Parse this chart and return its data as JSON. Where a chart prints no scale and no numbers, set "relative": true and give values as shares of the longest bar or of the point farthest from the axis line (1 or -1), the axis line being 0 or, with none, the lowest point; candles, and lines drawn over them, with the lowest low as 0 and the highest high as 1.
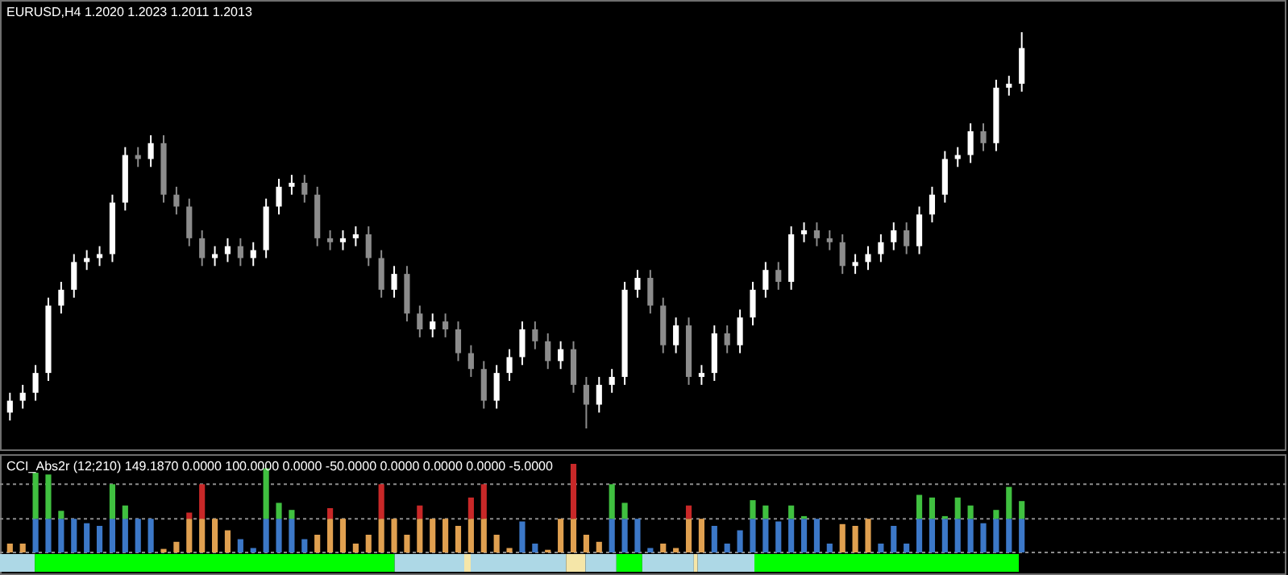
{
  "chart_data": [
    {
      "type": "candlestick",
      "title": "EURUSD,H4 1.2020 1.2023 1.2011 1.2013",
      "relative": true,
      "categories": [
        null,
        null,
        null,
        null,
        null,
        null,
        null,
        null,
        null,
        null,
        null,
        null,
        null,
        null,
        null,
        null,
        null,
        null,
        null,
        null,
        null,
        null,
        null,
        null,
        null,
        null,
        null,
        null,
        null,
        null,
        null,
        null,
        null,
        null,
        null,
        null,
        null,
        null,
        null,
        null,
        null,
        null,
        null,
        null,
        null,
        null,
        null,
        null,
        null,
        null,
        null,
        null,
        null,
        null,
        null,
        null,
        null,
        null,
        null,
        null,
        null,
        null,
        null,
        null,
        null,
        null,
        null,
        null,
        null,
        null,
        null,
        null,
        null,
        null,
        null,
        null,
        null,
        null,
        null,
        null
      ],
      "ohlc": [
        [
          0.04,
          0.09,
          0.02,
          0.07
        ],
        [
          0.07,
          0.11,
          0.05,
          0.09
        ],
        [
          0.09,
          0.16,
          0.07,
          0.14
        ],
        [
          0.14,
          0.33,
          0.12,
          0.31
        ],
        [
          0.31,
          0.37,
          0.29,
          0.35
        ],
        [
          0.35,
          0.44,
          0.33,
          0.42
        ],
        [
          0.42,
          0.45,
          0.4,
          0.43
        ],
        [
          0.43,
          0.46,
          0.41,
          0.44
        ],
        [
          0.44,
          0.59,
          0.42,
          0.57
        ],
        [
          0.57,
          0.71,
          0.55,
          0.69
        ],
        [
          0.69,
          0.71,
          0.66,
          0.68
        ],
        [
          0.68,
          0.74,
          0.66,
          0.72
        ],
        [
          0.72,
          0.74,
          0.57,
          0.59
        ],
        [
          0.59,
          0.61,
          0.54,
          0.56
        ],
        [
          0.56,
          0.58,
          0.46,
          0.48
        ],
        [
          0.48,
          0.5,
          0.41,
          0.43
        ],
        [
          0.43,
          0.46,
          0.41,
          0.44
        ],
        [
          0.44,
          0.48,
          0.42,
          0.46
        ],
        [
          0.46,
          0.48,
          0.41,
          0.43
        ],
        [
          0.43,
          0.47,
          0.41,
          0.45
        ],
        [
          0.45,
          0.58,
          0.43,
          0.56
        ],
        [
          0.56,
          0.63,
          0.54,
          0.61
        ],
        [
          0.61,
          0.64,
          0.59,
          0.62
        ],
        [
          0.62,
          0.64,
          0.57,
          0.59
        ],
        [
          0.59,
          0.61,
          0.46,
          0.48
        ],
        [
          0.48,
          0.5,
          0.45,
          0.47
        ],
        [
          0.47,
          0.5,
          0.45,
          0.48
        ],
        [
          0.48,
          0.51,
          0.46,
          0.49
        ],
        [
          0.49,
          0.51,
          0.41,
          0.43
        ],
        [
          0.43,
          0.45,
          0.33,
          0.35
        ],
        [
          0.35,
          0.41,
          0.33,
          0.39
        ],
        [
          0.39,
          0.41,
          0.27,
          0.29
        ],
        [
          0.29,
          0.31,
          0.23,
          0.25
        ],
        [
          0.25,
          0.29,
          0.23,
          0.27
        ],
        [
          0.27,
          0.29,
          0.23,
          0.25
        ],
        [
          0.25,
          0.27,
          0.17,
          0.19
        ],
        [
          0.19,
          0.21,
          0.13,
          0.15
        ],
        [
          0.15,
          0.17,
          0.05,
          0.07
        ],
        [
          0.07,
          0.16,
          0.05,
          0.14
        ],
        [
          0.14,
          0.2,
          0.12,
          0.18
        ],
        [
          0.18,
          0.27,
          0.16,
          0.25
        ],
        [
          0.25,
          0.27,
          0.2,
          0.22
        ],
        [
          0.22,
          0.24,
          0.15,
          0.17
        ],
        [
          0.17,
          0.22,
          0.15,
          0.2
        ],
        [
          0.2,
          0.22,
          0.09,
          0.11
        ],
        [
          0.11,
          0.13,
          0,
          0.06
        ],
        [
          0.06,
          0.13,
          0.04,
          0.11
        ],
        [
          0.11,
          0.15,
          0.09,
          0.13
        ],
        [
          0.13,
          0.37,
          0.11,
          0.35
        ],
        [
          0.35,
          0.4,
          0.33,
          0.38
        ],
        [
          0.38,
          0.4,
          0.29,
          0.31
        ],
        [
          0.31,
          0.33,
          0.19,
          0.21
        ],
        [
          0.21,
          0.28,
          0.19,
          0.26
        ],
        [
          0.26,
          0.28,
          0.11,
          0.13
        ],
        [
          0.13,
          0.16,
          0.11,
          0.14
        ],
        [
          0.14,
          0.26,
          0.12,
          0.24
        ],
        [
          0.24,
          0.26,
          0.19,
          0.21
        ],
        [
          0.21,
          0.3,
          0.19,
          0.28
        ],
        [
          0.28,
          0.37,
          0.26,
          0.35
        ],
        [
          0.35,
          0.42,
          0.33,
          0.4
        ],
        [
          0.4,
          0.42,
          0.35,
          0.37
        ],
        [
          0.37,
          0.51,
          0.35,
          0.49
        ],
        [
          0.49,
          0.52,
          0.47,
          0.5
        ],
        [
          0.5,
          0.52,
          0.46,
          0.48
        ],
        [
          0.48,
          0.5,
          0.45,
          0.47
        ],
        [
          0.47,
          0.49,
          0.39,
          0.41
        ],
        [
          0.41,
          0.44,
          0.39,
          0.42
        ],
        [
          0.42,
          0.46,
          0.4,
          0.44
        ],
        [
          0.44,
          0.49,
          0.42,
          0.47
        ],
        [
          0.47,
          0.52,
          0.45,
          0.5
        ],
        [
          0.5,
          0.52,
          0.44,
          0.46
        ],
        [
          0.46,
          0.56,
          0.44,
          0.54
        ],
        [
          0.54,
          0.61,
          0.52,
          0.59
        ],
        [
          0.59,
          0.7,
          0.57,
          0.68
        ],
        [
          0.68,
          0.71,
          0.66,
          0.69
        ],
        [
          0.69,
          0.77,
          0.67,
          0.75
        ],
        [
          0.75,
          0.77,
          0.7,
          0.72
        ],
        [
          0.72,
          0.88,
          0.7,
          0.86
        ],
        [
          0.86,
          0.89,
          0.84,
          0.87
        ],
        [
          0.87,
          1,
          0.85,
          0.96
        ]
      ],
      "colors": [
        "#ffffff",
        "#ffffff",
        "#ffffff",
        "#ffffff",
        "#ffffff",
        "#ffffff",
        "#ffffff",
        "#ffffff",
        "#ffffff",
        "#ffffff",
        "#8c8c8c",
        "#ffffff",
        "#8c8c8c",
        "#8c8c8c",
        "#8c8c8c",
        "#8c8c8c",
        "#ffffff",
        "#ffffff",
        "#8c8c8c",
        "#ffffff",
        "#ffffff",
        "#ffffff",
        "#ffffff",
        "#8c8c8c",
        "#8c8c8c",
        "#8c8c8c",
        "#ffffff",
        "#ffffff",
        "#8c8c8c",
        "#8c8c8c",
        "#ffffff",
        "#8c8c8c",
        "#8c8c8c",
        "#ffffff",
        "#8c8c8c",
        "#8c8c8c",
        "#8c8c8c",
        "#8c8c8c",
        "#ffffff",
        "#ffffff",
        "#ffffff",
        "#8c8c8c",
        "#8c8c8c",
        "#ffffff",
        "#8c8c8c",
        "#8c8c8c",
        "#ffffff",
        "#ffffff",
        "#ffffff",
        "#ffffff",
        "#8c8c8c",
        "#8c8c8c",
        "#ffffff",
        "#8c8c8c",
        "#ffffff",
        "#ffffff",
        "#8c8c8c",
        "#ffffff",
        "#ffffff",
        "#ffffff",
        "#8c8c8c",
        "#ffffff",
        "#ffffff",
        "#8c8c8c",
        "#8c8c8c",
        "#8c8c8c",
        "#ffffff",
        "#ffffff",
        "#ffffff",
        "#ffffff",
        "#8c8c8c",
        "#ffffff",
        "#ffffff",
        "#ffffff",
        "#ffffff",
        "#ffffff",
        "#8c8c8c",
        "#ffffff",
        "#ffffff",
        "#ffffff"
      ]
    },
    {
      "type": "bar",
      "title": "CCI_Abs2r (12;210) 149.1870 0.0000 100.0000 0.0000 -50.0000 0.0000 0.0000 0.0000 -5.0000",
      "relative": true,
      "stacked": true,
      "categories": [
        null,
        null,
        null,
        null,
        null,
        null,
        null,
        null,
        null,
        null,
        null,
        null,
        null,
        null,
        null,
        null,
        null,
        null,
        null,
        null,
        null,
        null,
        null,
        null,
        null,
        null,
        null,
        null,
        null,
        null,
        null,
        null,
        null,
        null,
        null,
        null,
        null,
        null,
        null,
        null,
        null,
        null,
        null,
        null,
        null,
        null,
        null,
        null,
        null,
        null,
        null,
        null,
        null,
        null,
        null,
        null,
        null,
        null,
        null,
        null,
        null,
        null,
        null,
        null,
        null,
        null,
        null,
        null,
        null,
        null,
        null,
        null,
        null,
        null,
        null,
        null,
        null,
        null,
        null,
        null
      ],
      "series": [
        {
          "color": "#3c78c8",
          "values": [
            null,
            null,
            0.38,
            0.38,
            0.38,
            0.38,
            0.33,
            0.3,
            0.38,
            0.38,
            0.38,
            0.38,
            null,
            null,
            null,
            null,
            null,
            null,
            0.15,
            0.05,
            0.38,
            0.38,
            0.38,
            0.15,
            null,
            null,
            null,
            null,
            null,
            null,
            null,
            null,
            null,
            null,
            null,
            null,
            null,
            null,
            null,
            null,
            0.35,
            0.1,
            null,
            null,
            null,
            null,
            null,
            0.38,
            0.38,
            0.38,
            0.05,
            null,
            null,
            null,
            null,
            0.3,
            0.1,
            0.25,
            0.38,
            0.38,
            0.35,
            0.38,
            0.38,
            0.38,
            0.1,
            null,
            null,
            null,
            0.1,
            0.3,
            0.1,
            0.38,
            0.38,
            0.38,
            0.38,
            0.38,
            0.33,
            0.38,
            0.38,
            0.38
          ]
        },
        {
          "color": "#e0a050",
          "values": [
            0.1,
            0.1,
            null,
            null,
            null,
            null,
            null,
            null,
            null,
            null,
            null,
            null,
            0.04,
            0.12,
            0.38,
            0.38,
            0.38,
            0.25,
            null,
            null,
            null,
            null,
            null,
            null,
            0.2,
            0.38,
            0.38,
            0.1,
            0.2,
            0.38,
            0.38,
            0.2,
            0.38,
            0.38,
            0.38,
            0.3,
            0.38,
            0.38,
            0.2,
            0.05,
            null,
            null,
            0.03,
            0.38,
            0.38,
            0.2,
            0.12,
            null,
            null,
            null,
            null,
            0.1,
            0.05,
            0.38,
            0.38,
            null,
            null,
            null,
            null,
            null,
            null,
            null,
            null,
            null,
            null,
            0.32,
            0.3,
            0.38,
            null,
            null,
            null,
            null,
            null,
            null,
            null,
            null,
            null,
            null,
            null,
            null
          ]
        },
        {
          "color": "#40c040",
          "values": [
            null,
            null,
            0.52,
            0.5,
            0.09,
            null,
            null,
            null,
            0.39,
            0.15,
            null,
            null,
            null,
            null,
            null,
            null,
            null,
            null,
            null,
            null,
            0.57,
            0.18,
            0.1,
            null,
            null,
            null,
            null,
            null,
            null,
            null,
            null,
            null,
            null,
            null,
            null,
            null,
            null,
            null,
            null,
            null,
            null,
            null,
            null,
            null,
            null,
            null,
            null,
            0.39,
            0.18,
            null,
            null,
            null,
            null,
            null,
            null,
            null,
            null,
            null,
            0.21,
            0.15,
            null,
            0.15,
            0.03,
            null,
            null,
            null,
            null,
            null,
            null,
            null,
            null,
            0.27,
            0.24,
            0.03,
            0.24,
            0.15,
            null,
            0.1,
            0.36,
            0.2
          ]
        },
        {
          "color": "#c82828",
          "values": [
            null,
            null,
            null,
            null,
            null,
            null,
            null,
            null,
            null,
            null,
            null,
            null,
            null,
            null,
            0.07,
            0.39,
            null,
            null,
            null,
            null,
            null,
            null,
            null,
            null,
            null,
            0.12,
            null,
            null,
            null,
            0.39,
            null,
            null,
            0.15,
            null,
            null,
            null,
            0.24,
            0.39,
            null,
            null,
            null,
            null,
            null,
            null,
            0.62,
            null,
            null,
            null,
            null,
            null,
            null,
            null,
            null,
            0.15,
            null,
            null,
            null,
            null,
            null,
            null,
            null,
            null,
            null,
            null,
            null,
            null,
            null,
            null,
            null,
            null,
            null,
            null,
            null,
            null,
            null,
            null,
            null,
            null,
            null,
            null
          ]
        }
      ],
      "ref_lines": [
        {
          "axis": "y",
          "value": 0,
          "color": "#8c8c8c",
          "line_style": "dotted"
        },
        {
          "axis": "y",
          "value": 0.38,
          "color": "#8c8c8c",
          "line_style": "dotted"
        },
        {
          "axis": "y",
          "value": 0.77,
          "color": "#8c8c8c",
          "line_style": "dotted"
        }
      ]
    }
  ]
}
